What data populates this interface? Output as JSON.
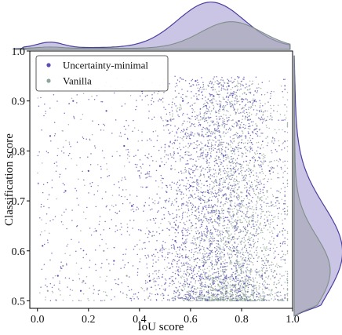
{
  "chart_data": {
    "type": "scatter",
    "xlabel": "IoU score",
    "ylabel": "Classification score",
    "xlim": [
      -0.03,
      1.0
    ],
    "ylim": [
      0.485,
      1.0
    ],
    "x_ticks": [
      "0.0",
      "0.2",
      "0.4",
      "0.6",
      "0.8",
      "1.0"
    ],
    "x_tick_values": [
      0.0,
      0.2,
      0.4,
      0.6,
      0.8,
      1.0
    ],
    "y_ticks": [
      "0.5",
      "0.6",
      "0.7",
      "0.8",
      "0.9",
      "1.0"
    ],
    "y_tick_values": [
      0.5,
      0.6,
      0.7,
      0.8,
      0.9,
      1.0
    ],
    "legend_position": "top-left",
    "grid": false,
    "marginal_plots": "kde-top-and-right",
    "series": [
      {
        "name": "Uncertainty-minimal",
        "color": "#5a4fb0",
        "fill_color": "#b9b2dc",
        "x_range": [
          0.0,
          0.97
        ],
        "y_range": [
          0.5,
          0.95
        ],
        "x_density_peak": 0.68,
        "y_density_peak": 0.6,
        "points": [
          [
            0.02,
            0.61
          ],
          [
            0.05,
            0.83
          ],
          [
            0.08,
            0.55
          ],
          [
            0.11,
            0.72
          ],
          [
            0.14,
            0.9
          ],
          [
            0.17,
            0.52
          ],
          [
            0.2,
            0.76
          ],
          [
            0.23,
            0.64
          ],
          [
            0.27,
            0.88
          ],
          [
            0.3,
            0.58
          ],
          [
            0.34,
            0.81
          ],
          [
            0.37,
            0.69
          ],
          [
            0.41,
            0.92
          ],
          [
            0.44,
            0.54
          ],
          [
            0.48,
            0.77
          ],
          [
            0.51,
            0.86
          ],
          [
            0.54,
            0.62
          ],
          [
            0.57,
            0.9
          ],
          [
            0.6,
            0.73
          ],
          [
            0.62,
            0.94
          ],
          [
            0.65,
            0.57
          ],
          [
            0.67,
            0.83
          ],
          [
            0.69,
            0.91
          ],
          [
            0.71,
            0.67
          ],
          [
            0.73,
            0.79
          ],
          [
            0.75,
            0.93
          ],
          [
            0.77,
            0.6
          ],
          [
            0.79,
            0.86
          ],
          [
            0.82,
            0.71
          ],
          [
            0.85,
            0.9
          ],
          [
            0.88,
            0.55
          ],
          [
            0.91,
            0.76
          ],
          [
            0.94,
            0.63
          ]
        ]
      },
      {
        "name": "Vanilla",
        "color": "#8fa59a",
        "fill_color": "#a8a8b8",
        "x_range": [
          0.0,
          0.98
        ],
        "y_range": [
          0.5,
          0.94
        ],
        "x_density_peak": 0.76,
        "y_density_peak": 0.56,
        "points": [
          [
            0.04,
            0.52
          ],
          [
            0.1,
            0.57
          ],
          [
            0.18,
            0.54
          ],
          [
            0.26,
            0.6
          ],
          [
            0.35,
            0.55
          ],
          [
            0.45,
            0.63
          ],
          [
            0.55,
            0.52
          ],
          [
            0.62,
            0.68
          ],
          [
            0.66,
            0.58
          ],
          [
            0.7,
            0.74
          ],
          [
            0.72,
            0.55
          ],
          [
            0.74,
            0.64
          ],
          [
            0.76,
            0.8
          ],
          [
            0.78,
            0.58
          ],
          [
            0.8,
            0.7
          ],
          [
            0.82,
            0.53
          ],
          [
            0.84,
            0.66
          ],
          [
            0.86,
            0.85
          ],
          [
            0.88,
            0.6
          ],
          [
            0.9,
            0.72
          ],
          [
            0.93,
            0.56
          ],
          [
            0.96,
            0.64
          ]
        ]
      }
    ]
  }
}
